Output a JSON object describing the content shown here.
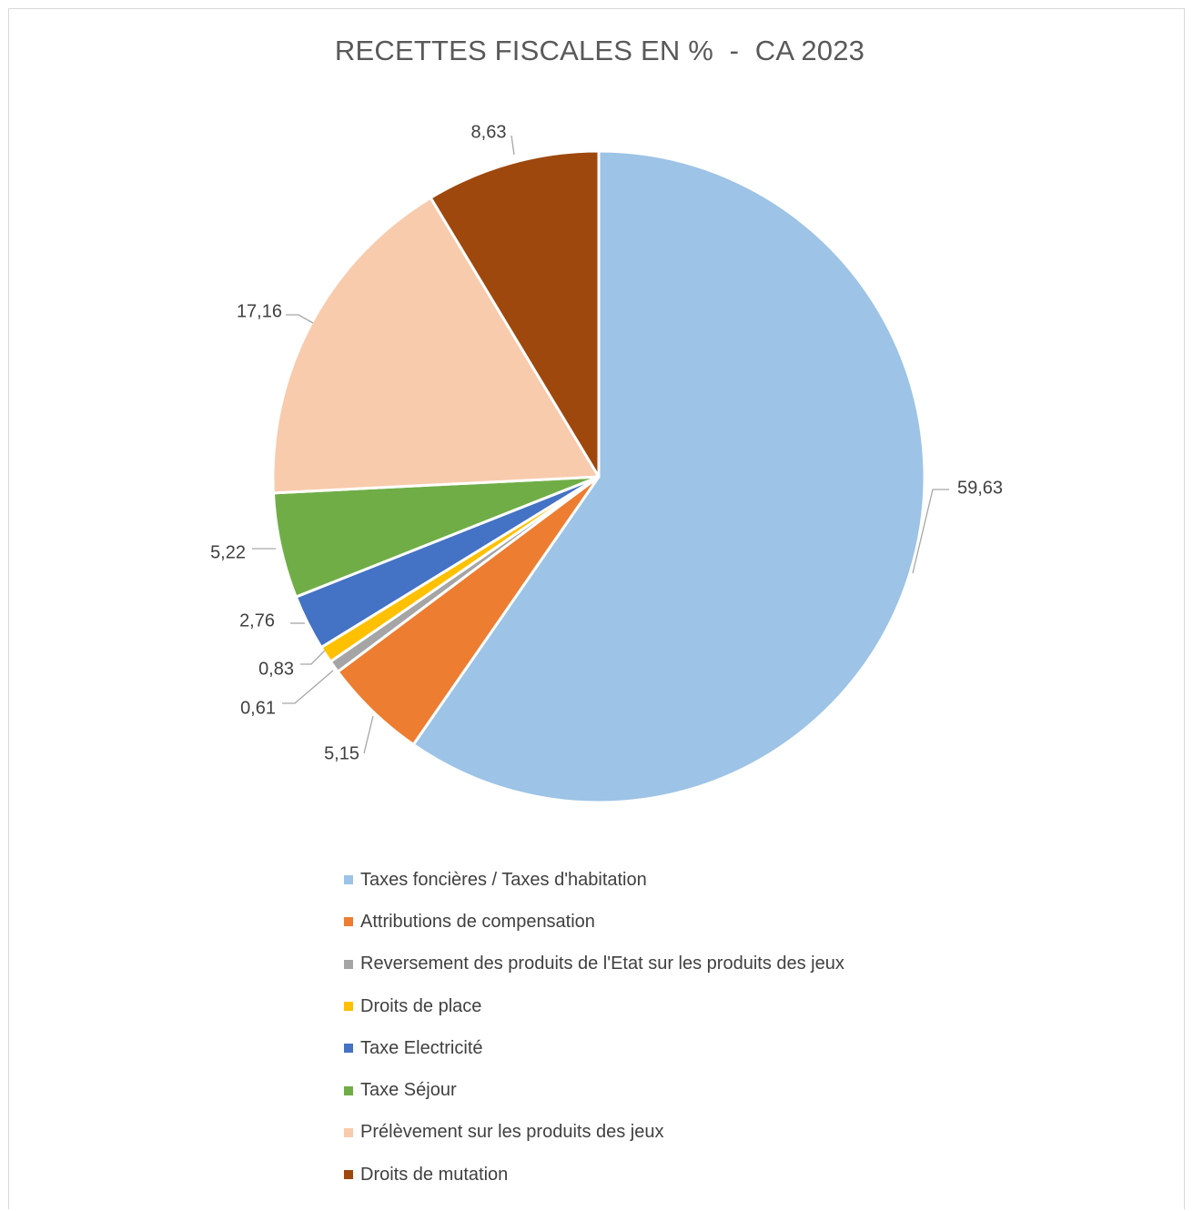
{
  "chart_data": {
    "type": "pie",
    "title": "RECETTES FISCALES EN %  -  CA 2023",
    "legend_position": "bottom",
    "slices": [
      {
        "label": "Taxes foncières / Taxes d'habitation",
        "value": 59.63,
        "value_label": "59,63",
        "color": "#9dc3e6"
      },
      {
        "label": "Attributions de compensation",
        "value": 5.15,
        "value_label": "5,15",
        "color": "#ed7d31"
      },
      {
        "label": "Reversement des produits de l'Etat sur les produits des jeux",
        "value": 0.61,
        "value_label": "0,61",
        "color": "#a5a5a5"
      },
      {
        "label": "Droits de place",
        "value": 0.83,
        "value_label": "0,83",
        "color": "#ffc000"
      },
      {
        "label": "Taxe Electricité",
        "value": 2.76,
        "value_label": "2,76",
        "color": "#4472c4"
      },
      {
        "label": "Taxe Séjour",
        "value": 5.22,
        "value_label": "5,22",
        "color": "#70ad47"
      },
      {
        "label": "Prélèvement sur les produits des jeux",
        "value": 17.16,
        "value_label": "17,16",
        "color": "#f8cbad"
      },
      {
        "label": "Droits de mutation",
        "value": 8.63,
        "value_label": "8,63",
        "color": "#9e480e"
      }
    ]
  }
}
